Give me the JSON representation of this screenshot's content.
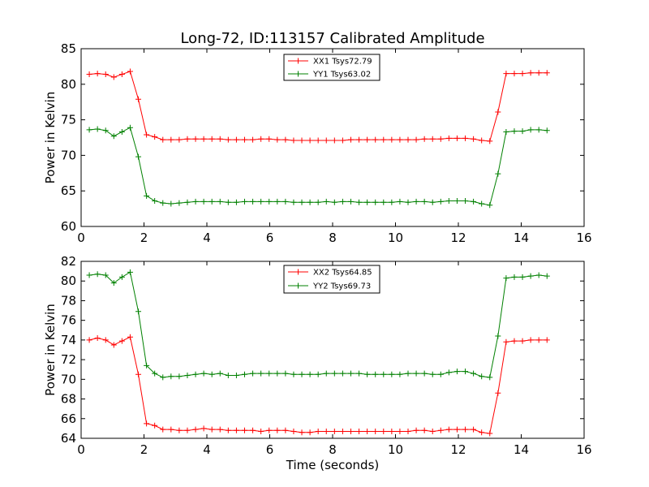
{
  "figure": {
    "title": "Long-72, ID:113157 Calibrated Amplitude",
    "xlabel": "Time (seconds)"
  },
  "chart_data": [
    {
      "type": "line",
      "title": "Long-72, ID:113157 Calibrated Amplitude",
      "xlabel": "",
      "ylabel": "Power in Kelvin",
      "xlim": [
        0,
        16
      ],
      "ylim": [
        60,
        85
      ],
      "xticks": [
        "0",
        "2",
        "4",
        "6",
        "8",
        "10",
        "12",
        "14",
        "16"
      ],
      "yticks": [
        "60",
        "65",
        "70",
        "75",
        "80",
        "85"
      ],
      "grid": false,
      "legend_position": "top-center",
      "x": [
        0.26,
        0.52,
        0.78,
        1.04,
        1.3,
        1.56,
        1.82,
        2.08,
        2.34,
        2.6,
        2.86,
        3.12,
        3.38,
        3.64,
        3.9,
        4.16,
        4.42,
        4.68,
        4.94,
        5.2,
        5.46,
        5.72,
        5.98,
        6.24,
        6.5,
        6.76,
        7.02,
        7.28,
        7.54,
        7.8,
        8.06,
        8.32,
        8.58,
        8.84,
        9.1,
        9.36,
        9.62,
        9.88,
        10.14,
        10.4,
        10.66,
        10.92,
        11.18,
        11.44,
        11.7,
        11.96,
        12.22,
        12.48,
        12.74,
        13.0,
        13.26,
        13.52,
        13.78,
        14.04,
        14.3,
        14.56,
        14.82
      ],
      "series": [
        {
          "name": "XX1 Tsys72.79",
          "color": "#ff0000",
          "values": [
            81.4,
            81.5,
            81.4,
            81.0,
            81.4,
            81.8,
            77.9,
            72.9,
            72.6,
            72.2,
            72.2,
            72.2,
            72.3,
            72.3,
            72.3,
            72.3,
            72.3,
            72.2,
            72.2,
            72.2,
            72.2,
            72.3,
            72.3,
            72.2,
            72.2,
            72.1,
            72.1,
            72.1,
            72.1,
            72.1,
            72.1,
            72.1,
            72.2,
            72.2,
            72.2,
            72.2,
            72.2,
            72.2,
            72.2,
            72.2,
            72.2,
            72.3,
            72.3,
            72.3,
            72.4,
            72.4,
            72.4,
            72.3,
            72.1,
            72.0,
            76.1,
            81.5,
            81.5,
            81.5,
            81.6,
            81.6,
            81.6
          ]
        },
        {
          "name": "YY1 Tsys63.02",
          "color": "#008000",
          "values": [
            73.6,
            73.7,
            73.5,
            72.7,
            73.3,
            73.9,
            69.8,
            64.3,
            63.6,
            63.3,
            63.2,
            63.3,
            63.4,
            63.5,
            63.5,
            63.5,
            63.5,
            63.4,
            63.4,
            63.5,
            63.5,
            63.5,
            63.5,
            63.5,
            63.5,
            63.4,
            63.4,
            63.4,
            63.4,
            63.5,
            63.4,
            63.5,
            63.5,
            63.4,
            63.4,
            63.4,
            63.4,
            63.4,
            63.5,
            63.4,
            63.5,
            63.5,
            63.4,
            63.5,
            63.6,
            63.6,
            63.6,
            63.5,
            63.2,
            63.0,
            67.4,
            73.3,
            73.4,
            73.4,
            73.6,
            73.6,
            73.5
          ]
        }
      ]
    },
    {
      "type": "line",
      "title": "",
      "xlabel": "Time (seconds)",
      "ylabel": "Power in Kelvin",
      "xlim": [
        0,
        16
      ],
      "ylim": [
        64,
        82
      ],
      "xticks": [
        "0",
        "2",
        "4",
        "6",
        "8",
        "10",
        "12",
        "14",
        "16"
      ],
      "yticks": [
        "64",
        "66",
        "68",
        "70",
        "72",
        "74",
        "76",
        "78",
        "80",
        "82"
      ],
      "grid": false,
      "legend_position": "top-center",
      "x": [
        0.26,
        0.52,
        0.78,
        1.04,
        1.3,
        1.56,
        1.82,
        2.08,
        2.34,
        2.6,
        2.86,
        3.12,
        3.38,
        3.64,
        3.9,
        4.16,
        4.42,
        4.68,
        4.94,
        5.2,
        5.46,
        5.72,
        5.98,
        6.24,
        6.5,
        6.76,
        7.02,
        7.28,
        7.54,
        7.8,
        8.06,
        8.32,
        8.58,
        8.84,
        9.1,
        9.36,
        9.62,
        9.88,
        10.14,
        10.4,
        10.66,
        10.92,
        11.18,
        11.44,
        11.7,
        11.96,
        12.22,
        12.48,
        12.74,
        13.0,
        13.26,
        13.52,
        13.78,
        14.04,
        14.3,
        14.56,
        14.82
      ],
      "series": [
        {
          "name": "XX2 Tsys64.85",
          "color": "#ff0000",
          "values": [
            74.0,
            74.2,
            74.0,
            73.5,
            73.9,
            74.3,
            70.5,
            65.5,
            65.3,
            64.9,
            64.9,
            64.8,
            64.8,
            64.9,
            65.0,
            64.9,
            64.9,
            64.8,
            64.8,
            64.8,
            64.8,
            64.7,
            64.8,
            64.8,
            64.8,
            64.7,
            64.6,
            64.6,
            64.7,
            64.7,
            64.7,
            64.7,
            64.7,
            64.7,
            64.7,
            64.7,
            64.7,
            64.7,
            64.7,
            64.7,
            64.8,
            64.8,
            64.7,
            64.8,
            64.9,
            64.9,
            64.9,
            64.9,
            64.6,
            64.5,
            68.6,
            73.8,
            73.9,
            73.9,
            74.0,
            74.0,
            74.0
          ]
        },
        {
          "name": "YY2 Tsys69.73",
          "color": "#008000",
          "values": [
            80.6,
            80.7,
            80.6,
            79.8,
            80.4,
            80.9,
            76.9,
            71.4,
            70.6,
            70.2,
            70.3,
            70.3,
            70.4,
            70.5,
            70.6,
            70.5,
            70.6,
            70.4,
            70.4,
            70.5,
            70.6,
            70.6,
            70.6,
            70.6,
            70.6,
            70.5,
            70.5,
            70.5,
            70.5,
            70.6,
            70.6,
            70.6,
            70.6,
            70.6,
            70.5,
            70.5,
            70.5,
            70.5,
            70.5,
            70.6,
            70.6,
            70.6,
            70.5,
            70.5,
            70.7,
            70.8,
            70.8,
            70.6,
            70.3,
            70.2,
            74.4,
            80.3,
            80.4,
            80.4,
            80.5,
            80.6,
            80.5
          ]
        }
      ]
    }
  ]
}
